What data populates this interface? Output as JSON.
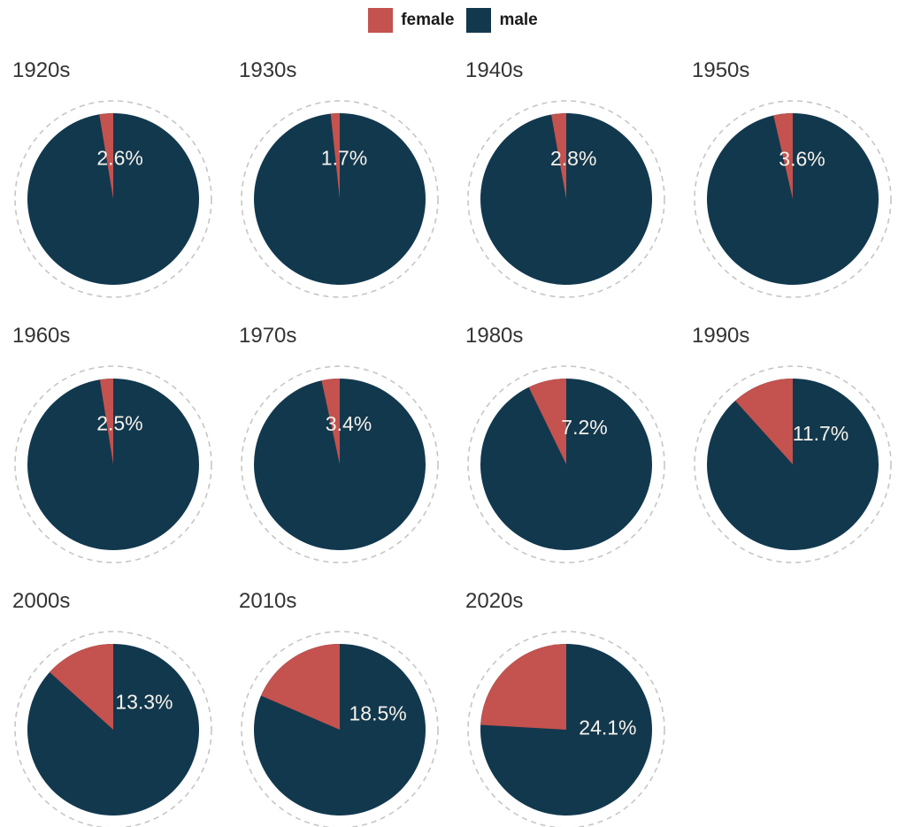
{
  "legend": {
    "items": [
      {
        "label": "female",
        "color": "#c4524e"
      },
      {
        "label": "male",
        "color": "#12384e"
      }
    ]
  },
  "chart_data": {
    "type": "pie",
    "layout": "small-multiples-grid",
    "columns": 4,
    "categories": [
      "1920s",
      "1930s",
      "1940s",
      "1950s",
      "1960s",
      "1970s",
      "1980s",
      "1990s",
      "2000s",
      "2010s",
      "2020s"
    ],
    "series": [
      {
        "name": "female",
        "color": "#c4524e",
        "values": [
          2.6,
          1.7,
          2.8,
          3.6,
          2.5,
          3.4,
          7.2,
          11.7,
          13.3,
          18.5,
          24.1
        ]
      },
      {
        "name": "male",
        "color": "#12384e",
        "values": [
          97.4,
          98.3,
          97.2,
          96.4,
          97.5,
          96.6,
          92.8,
          88.3,
          86.7,
          81.5,
          75.9
        ]
      }
    ],
    "value_labels": [
      "2.6%",
      "1.7%",
      "2.8%",
      "3.6%",
      "2.5%",
      "3.4%",
      "7.2%",
      "11.7%",
      "13.3%",
      "18.5%",
      "24.1%"
    ],
    "slice_start": "top",
    "slice_direction": "counterclockwise",
    "label_color": "#f7f2ea",
    "title_color": "#333333",
    "dashed_ring_color": "#c6c6c6",
    "legend_position": "top-center",
    "grid": false
  }
}
